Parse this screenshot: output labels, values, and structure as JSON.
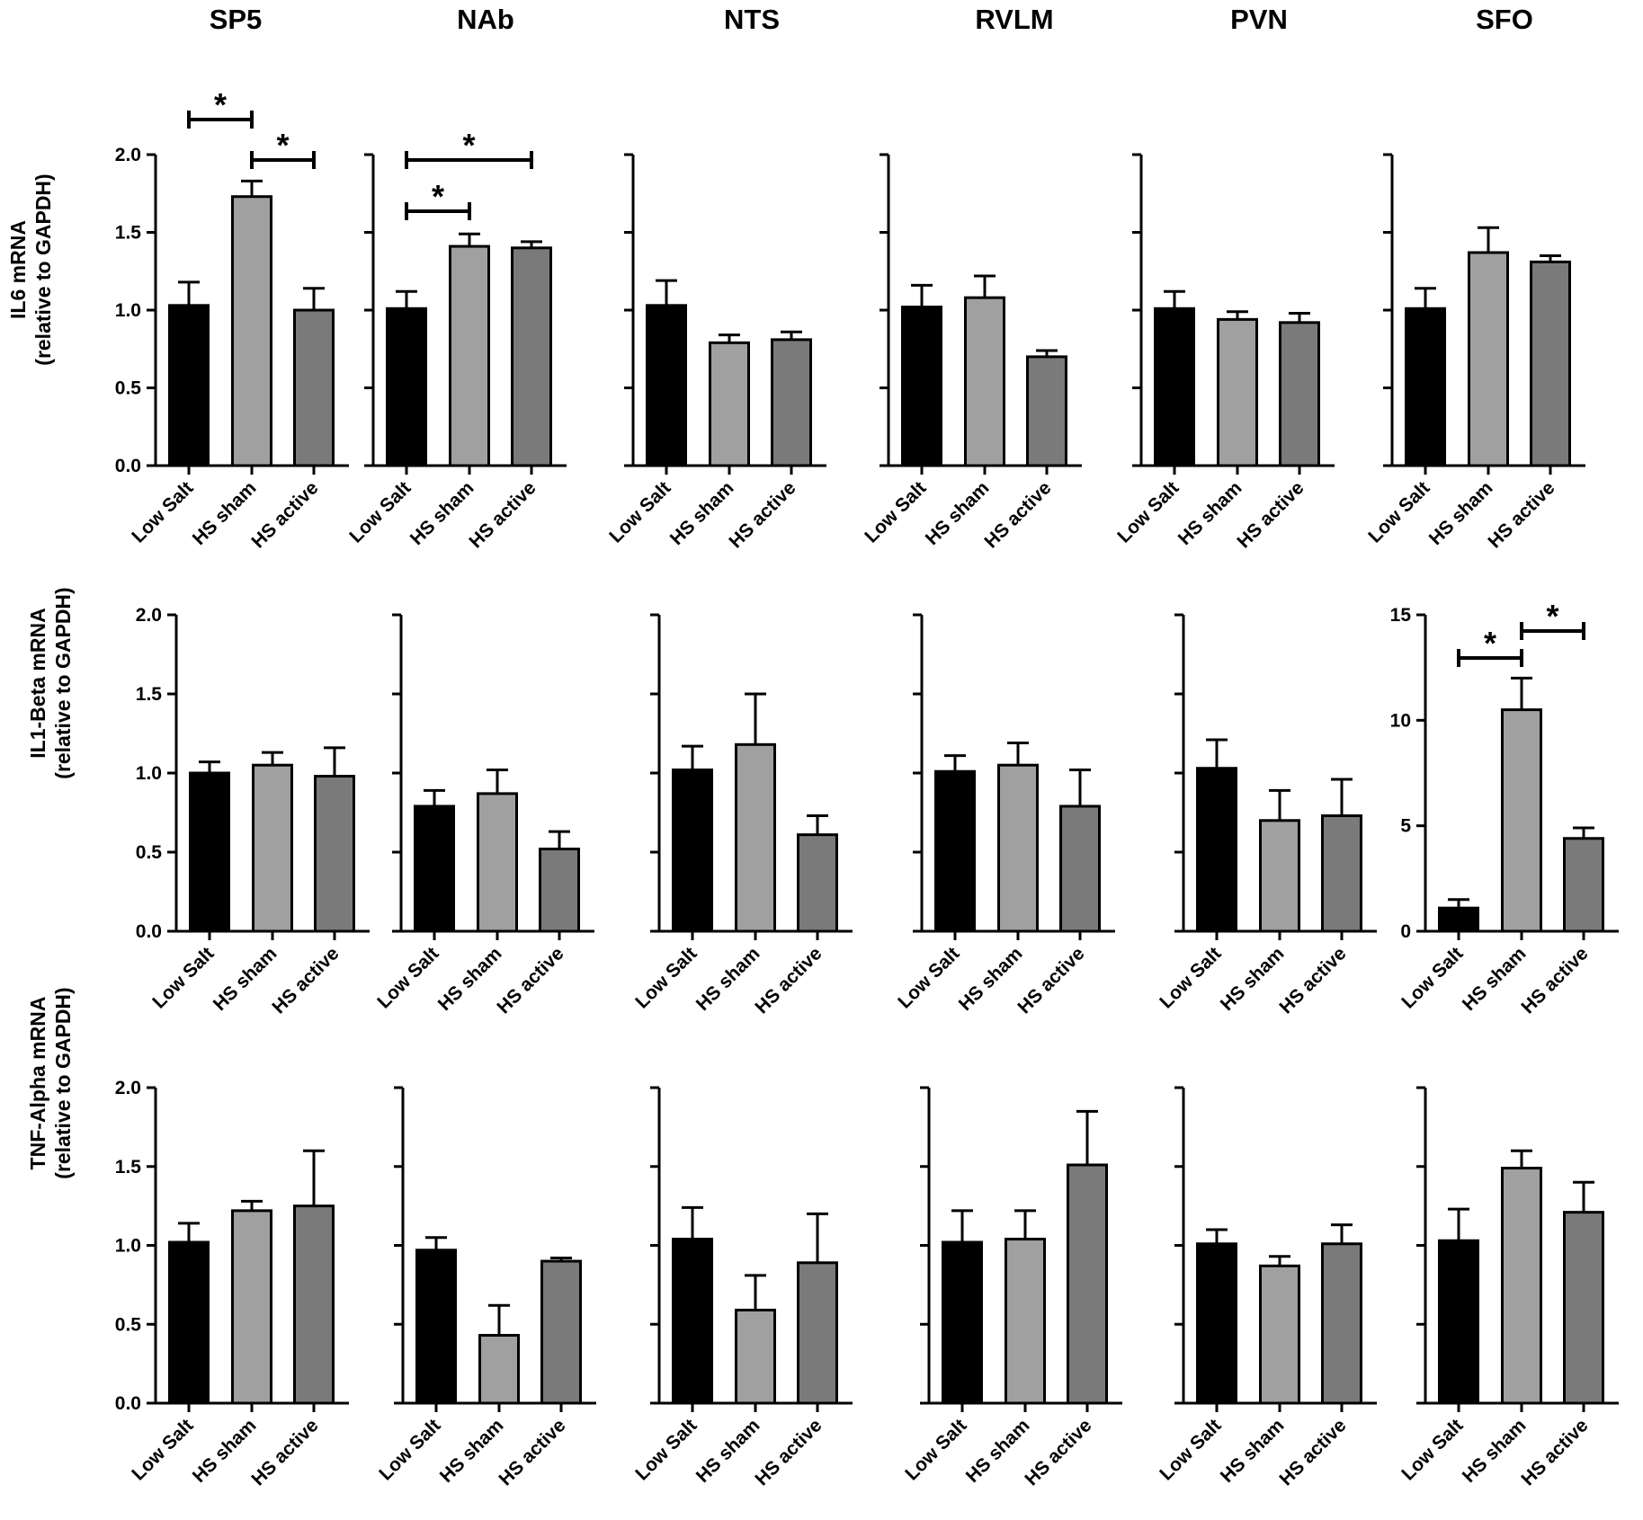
{
  "chart_data": {
    "type": "bar",
    "title": "",
    "regions": [
      "SP5",
      "NAb",
      "NTS",
      "RVLM",
      "PVN",
      "SFO"
    ],
    "categories": [
      "Low Salt",
      "HS sham",
      "HS active"
    ],
    "bar_colors": [
      "#000000",
      "#a0a0a0",
      "#7a7a7a"
    ],
    "rows": [
      {
        "ylabel": "IL6 mRNA",
        "ylabel2": "(relative to GAPDH)",
        "ylim": [
          0,
          2
        ],
        "ticks": [
          "0.0",
          "0.5",
          "1.0",
          "1.5",
          "2.0"
        ],
        "panels": [
          {
            "region": "SP5",
            "values": [
              1.03,
              1.73,
              1.0
            ],
            "errors": [
              0.15,
              0.1,
              0.14
            ],
            "significance": [
              {
                "from": 0,
                "to": 1,
                "label": "*"
              },
              {
                "from": 1,
                "to": 2,
                "label": "*"
              }
            ]
          },
          {
            "region": "NAb",
            "values": [
              1.01,
              1.41,
              1.4
            ],
            "errors": [
              0.11,
              0.08,
              0.04
            ],
            "significance": [
              {
                "from": 0,
                "to": 2,
                "label": "*"
              },
              {
                "from": 0,
                "to": 1,
                "label": "*"
              }
            ]
          },
          {
            "region": "NTS",
            "values": [
              1.03,
              0.79,
              0.81
            ],
            "errors": [
              0.16,
              0.05,
              0.05
            ],
            "significance": []
          },
          {
            "region": "RVLM",
            "values": [
              1.02,
              1.08,
              0.7
            ],
            "errors": [
              0.14,
              0.14,
              0.04
            ],
            "significance": []
          },
          {
            "region": "PVN",
            "values": [
              1.01,
              0.94,
              0.92
            ],
            "errors": [
              0.11,
              0.05,
              0.06
            ],
            "significance": []
          },
          {
            "region": "SFO",
            "values": [
              1.01,
              1.37,
              1.31
            ],
            "errors": [
              0.13,
              0.16,
              0.04
            ],
            "significance": []
          }
        ]
      },
      {
        "ylabel": "IL1-Beta mRNA",
        "ylabel2": "(relative to GAPDH)",
        "ylim": [
          0,
          2
        ],
        "ticks": [
          "0.0",
          "0.5",
          "1.0",
          "1.5",
          "2.0"
        ],
        "panels": [
          {
            "region": "SP5",
            "values": [
              1.0,
              1.05,
              0.98
            ],
            "errors": [
              0.07,
              0.08,
              0.18
            ],
            "significance": []
          },
          {
            "region": "NAb",
            "values": [
              0.79,
              0.87,
              0.52
            ],
            "errors": [
              0.1,
              0.15,
              0.11
            ],
            "significance": []
          },
          {
            "region": "NTS",
            "values": [
              1.02,
              1.18,
              0.61
            ],
            "errors": [
              0.15,
              0.32,
              0.12
            ],
            "significance": []
          },
          {
            "region": "RVLM",
            "values": [
              1.01,
              1.05,
              0.79
            ],
            "errors": [
              0.1,
              0.14,
              0.23
            ],
            "significance": []
          },
          {
            "region": "PVN",
            "values": [
              1.03,
              0.7,
              0.73
            ],
            "errors": [
              0.18,
              0.19,
              0.23
            ],
            "significance": []
          },
          {
            "region": "SFO",
            "values": [
              1.1,
              10.5,
              4.4
            ],
            "errors": [
              0.4,
              1.5,
              0.5
            ],
            "ylim": [
              0,
              15
            ],
            "ticks": [
              "0",
              "5",
              "10",
              "15"
            ],
            "significance": [
              {
                "from": 0,
                "to": 1,
                "label": "*"
              },
              {
                "from": 1,
                "to": 2,
                "label": "*"
              }
            ]
          }
        ]
      },
      {
        "ylabel": "TNF-Alpha mRNA",
        "ylabel2": "(relative to GAPDH)",
        "ylim": [
          0,
          2
        ],
        "ticks": [
          "0.0",
          "0.5",
          "1.0",
          "1.5",
          "2.0"
        ],
        "panels": [
          {
            "region": "SP5",
            "values": [
              1.02,
              1.22,
              1.25
            ],
            "errors": [
              0.12,
              0.06,
              0.35
            ],
            "significance": []
          },
          {
            "region": "NAb",
            "values": [
              0.97,
              0.43,
              0.9
            ],
            "errors": [
              0.08,
              0.19,
              0.02
            ],
            "significance": []
          },
          {
            "region": "NTS",
            "values": [
              1.04,
              0.59,
              0.89
            ],
            "errors": [
              0.2,
              0.22,
              0.31
            ],
            "significance": []
          },
          {
            "region": "RVLM",
            "values": [
              1.02,
              1.04,
              1.51
            ],
            "errors": [
              0.2,
              0.18,
              0.34
            ],
            "significance": []
          },
          {
            "region": "PVN",
            "values": [
              1.01,
              0.87,
              1.01
            ],
            "errors": [
              0.09,
              0.06,
              0.12
            ],
            "significance": []
          },
          {
            "region": "SFO",
            "values": [
              1.03,
              1.49,
              1.21
            ],
            "errors": [
              0.2,
              0.11,
              0.19
            ],
            "significance": []
          }
        ]
      }
    ]
  }
}
